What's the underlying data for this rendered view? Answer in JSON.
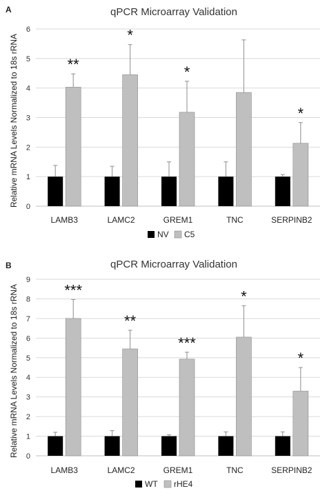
{
  "chart_data": [
    {
      "type": "bar",
      "panel": "A",
      "title": "qPCR Microarray Validation",
      "ylabel": "Relative mRNA Levels Normalized to 18s rRNA",
      "xlabel": "",
      "ylim": [
        0,
        6
      ],
      "yticks": [
        "0",
        "1",
        "2",
        "3",
        "4",
        "5",
        "6"
      ],
      "grid": true,
      "legend_position": "bottom",
      "categories": [
        "LAMB3",
        "LAMC2",
        "GREM1",
        "TNC",
        "SERPINB2"
      ],
      "series": [
        {
          "name": "NV",
          "color": "#000000",
          "values": [
            1.0,
            1.0,
            1.0,
            1.0,
            1.0
          ],
          "errors": [
            0.38,
            0.35,
            0.5,
            0.5,
            0.07
          ]
        },
        {
          "name": "C5",
          "color": "#bfbfbf",
          "values": [
            4.03,
            4.45,
            3.18,
            3.85,
            2.13
          ],
          "errors": [
            0.45,
            1.02,
            1.05,
            1.78,
            0.7
          ]
        }
      ],
      "annotations": [
        "**",
        "*",
        "*",
        "",
        "*"
      ]
    },
    {
      "type": "bar",
      "panel": "B",
      "title": "qPCR Microarray Validation",
      "ylabel": "Relative mRNA Levels Normalized to 18s rRNA",
      "xlabel": "",
      "ylim": [
        0,
        9
      ],
      "yticks": [
        "0",
        "1",
        "2",
        "3",
        "4",
        "5",
        "6",
        "7",
        "8",
        "9"
      ],
      "grid": true,
      "legend_position": "bottom",
      "categories": [
        "LAMB3",
        "LAMC2",
        "GREM1",
        "TNC",
        "SERPINB2"
      ],
      "series": [
        {
          "name": "WT",
          "color": "#000000",
          "values": [
            1.0,
            1.0,
            1.0,
            1.0,
            1.0
          ],
          "errors": [
            0.2,
            0.28,
            0.07,
            0.22,
            0.22
          ]
        },
        {
          "name": "rHE4",
          "color": "#bfbfbf",
          "values": [
            7.0,
            5.45,
            4.93,
            6.05,
            3.3
          ],
          "errors": [
            0.97,
            0.95,
            0.35,
            1.6,
            1.2
          ]
        }
      ],
      "annotations": [
        "***",
        "**",
        "***",
        "*",
        "*"
      ]
    }
  ]
}
